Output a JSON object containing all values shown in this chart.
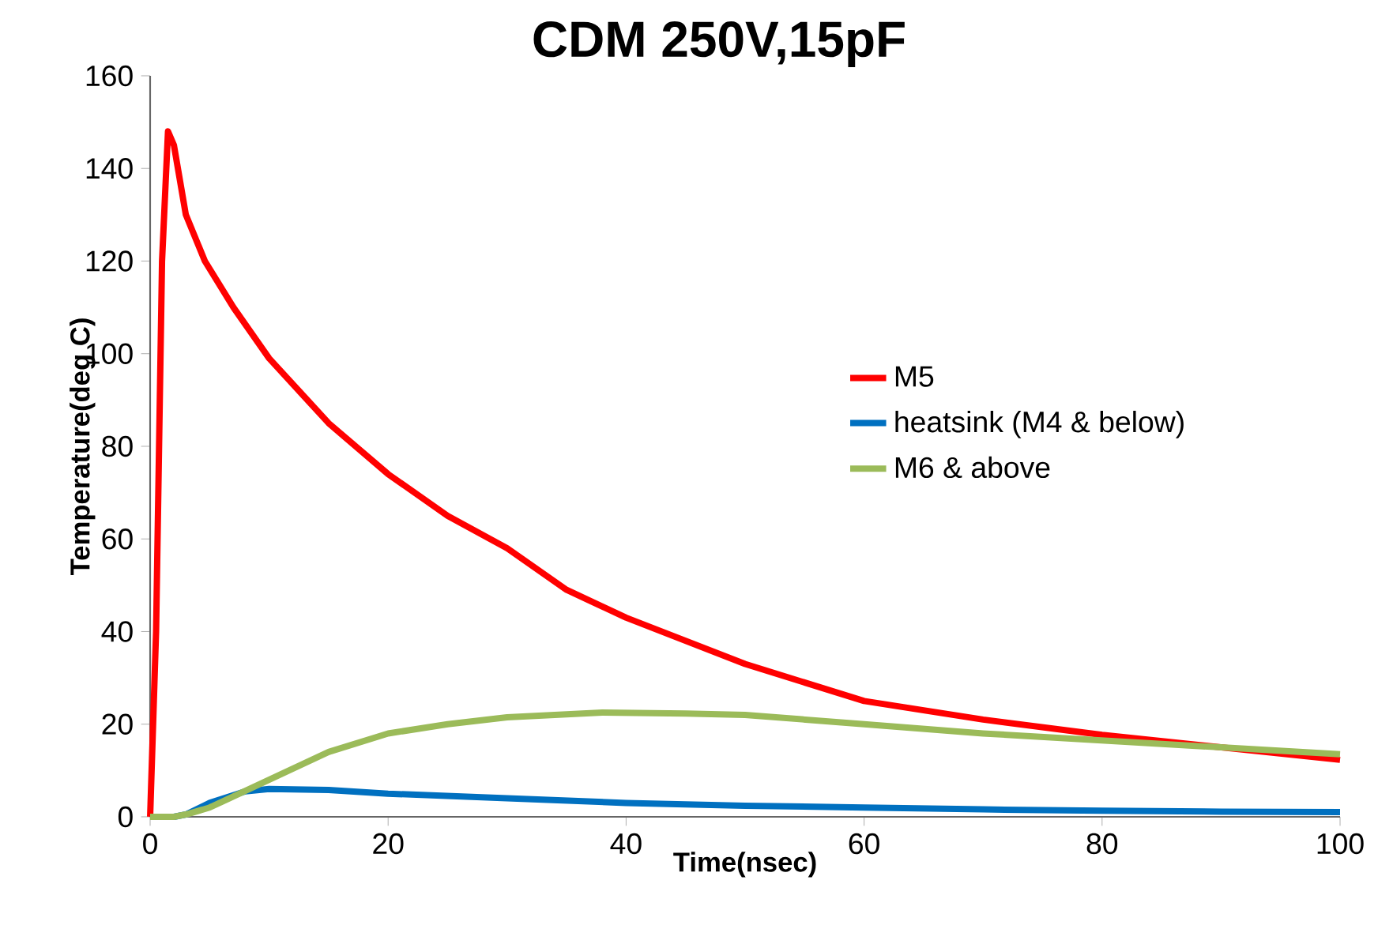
{
  "chart_data": {
    "type": "line",
    "title": "CDM 250V,15pF",
    "xlabel": "Time(nsec)",
    "ylabel": "Temperature(deg C)",
    "xlim": [
      0,
      100
    ],
    "ylim": [
      0,
      160
    ],
    "xticks": [
      0,
      20,
      40,
      60,
      80,
      100
    ],
    "yticks": [
      0,
      20,
      40,
      60,
      80,
      100,
      120,
      140,
      160
    ],
    "legend": "right",
    "series": [
      {
        "name": "M5",
        "color": "#ff0000",
        "x": [
          0,
          0.5,
          1,
          1.5,
          2,
          3,
          4.6,
          7,
          10,
          15,
          20,
          25,
          30,
          35,
          40,
          50,
          60,
          70,
          80,
          90,
          100
        ],
        "values": [
          0,
          40,
          120,
          148,
          145,
          130,
          120,
          110,
          99,
          85,
          74,
          65,
          58,
          49,
          43,
          33,
          25,
          21,
          17.7,
          15,
          12.3
        ]
      },
      {
        "name": "heatsink (M4 & below)",
        "color": "#0070c0",
        "x": [
          0,
          2,
          3,
          5,
          8,
          10,
          15,
          20,
          30,
          40,
          50,
          60,
          70,
          80,
          90,
          100
        ],
        "values": [
          0,
          0,
          0.5,
          3,
          5.5,
          6,
          5.8,
          5,
          4,
          3,
          2.4,
          2,
          1.6,
          1.3,
          1.1,
          1
        ]
      },
      {
        "name": "M6 & above",
        "color": "#9bbb59",
        "x": [
          0,
          2,
          3,
          5,
          10,
          15,
          20,
          25,
          30,
          38,
          45,
          50,
          60,
          70,
          80,
          90,
          100
        ],
        "values": [
          0,
          0,
          0.5,
          2,
          8,
          14,
          18,
          20,
          21.5,
          22.5,
          22.3,
          22,
          20,
          18,
          16.5,
          15,
          13.5
        ]
      }
    ]
  }
}
